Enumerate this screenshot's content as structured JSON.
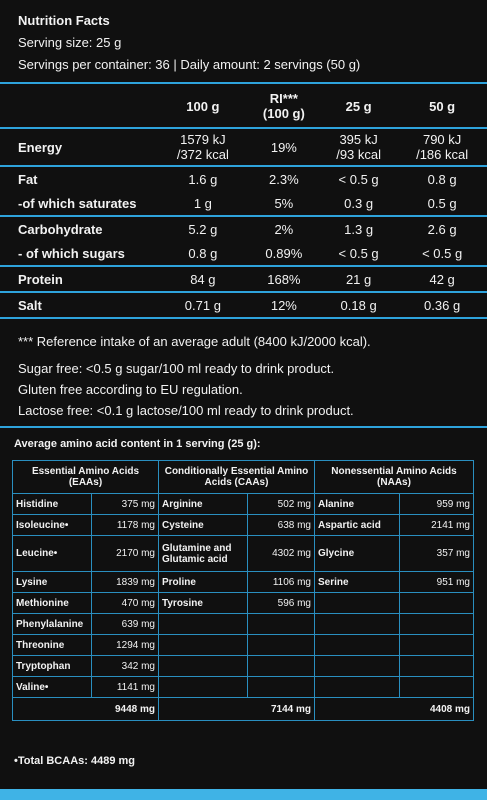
{
  "header": {
    "title": "Nutrition Facts",
    "serving_size": "Serving size: 25 g",
    "servings": "Servings per container: 36 | Daily amount: 2 servings (50 g)"
  },
  "nutrition": {
    "columns": [
      [
        "100 g"
      ],
      [
        "RI***",
        "(100 g)"
      ],
      [
        "25 g"
      ],
      [
        "50 g"
      ]
    ],
    "groups": [
      [
        {
          "label": "Energy",
          "values": [
            [
              "1579 kJ",
              "/372 kcal"
            ],
            [
              "19%"
            ],
            [
              "395 kJ",
              "/93 kcal"
            ],
            [
              "790 kJ",
              "/186 kcal"
            ]
          ]
        }
      ],
      [
        {
          "label": "Fat",
          "values": [
            [
              "1.6 g"
            ],
            [
              "2.3%"
            ],
            [
              "< 0.5 g"
            ],
            [
              "0.8 g"
            ]
          ]
        },
        {
          "label": "-of which saturates",
          "values": [
            [
              "1 g"
            ],
            [
              "5%"
            ],
            [
              "0.3 g"
            ],
            [
              "0.5 g"
            ]
          ]
        }
      ],
      [
        {
          "label": "Carbohydrate",
          "values": [
            [
              "5.2 g"
            ],
            [
              "2%"
            ],
            [
              "1.3 g"
            ],
            [
              "2.6 g"
            ]
          ]
        },
        {
          "label": "- of which sugars",
          "values": [
            [
              "0.8 g"
            ],
            [
              "0.89%"
            ],
            [
              "< 0.5 g"
            ],
            [
              "< 0.5 g"
            ]
          ]
        }
      ],
      [
        {
          "label": "Protein",
          "values": [
            [
              "84 g"
            ],
            [
              "168%"
            ],
            [
              "21 g"
            ],
            [
              "42 g"
            ]
          ]
        }
      ],
      [
        {
          "label": "Salt",
          "values": [
            [
              "0.71 g"
            ],
            [
              "12%"
            ],
            [
              "0.18 g"
            ],
            [
              "0.36 g"
            ]
          ]
        }
      ]
    ]
  },
  "notes": [
    "*** Reference intake of an average adult (8400 kJ/2000 kcal).",
    "Sugar free: <0.5 g sugar/100 ml ready to drink product.",
    "Gluten free according to EU regulation.",
    "Lactose free: <0.1 g lactose/100 ml ready to drink product."
  ],
  "amino": {
    "title": "Average amino acid content in 1 serving (25 g):",
    "groups": [
      "Essential Amino Acids (EAAs)",
      "Conditionally Essential Amino Acids (CAAs)",
      "Nonessential Amino Acids (NAAs)"
    ],
    "rows": [
      [
        [
          "Histidine",
          "375 mg"
        ],
        [
          "Arginine",
          "502 mg"
        ],
        [
          "Alanine",
          "959 mg"
        ]
      ],
      [
        [
          "Isoleucine•",
          "1178 mg"
        ],
        [
          "Cysteine",
          "638 mg"
        ],
        [
          "Aspartic acid",
          "2141 mg"
        ]
      ],
      [
        [
          "Leucine•",
          "2170 mg"
        ],
        [
          "Glutamine and Glutamic acid",
          "4302 mg"
        ],
        [
          "Glycine",
          "357 mg"
        ]
      ],
      [
        [
          "Lysine",
          "1839 mg"
        ],
        [
          "Proline",
          "1106 mg"
        ],
        [
          "Serine",
          "951 mg"
        ]
      ],
      [
        [
          "Methionine",
          "470 mg"
        ],
        [
          "Tyrosine",
          "596 mg"
        ]
      ],
      [
        [
          "Phenylalanine",
          "639 mg"
        ]
      ],
      [
        [
          "Threonine",
          "1294 mg"
        ]
      ],
      [
        [
          "Tryptophan",
          "342 mg"
        ]
      ],
      [
        [
          "Valine•",
          "1141 mg"
        ]
      ]
    ],
    "totals": [
      "9448 mg",
      "7144 mg",
      "4408 mg"
    ]
  },
  "footer": "•Total BCAAs: 4489 mg"
}
